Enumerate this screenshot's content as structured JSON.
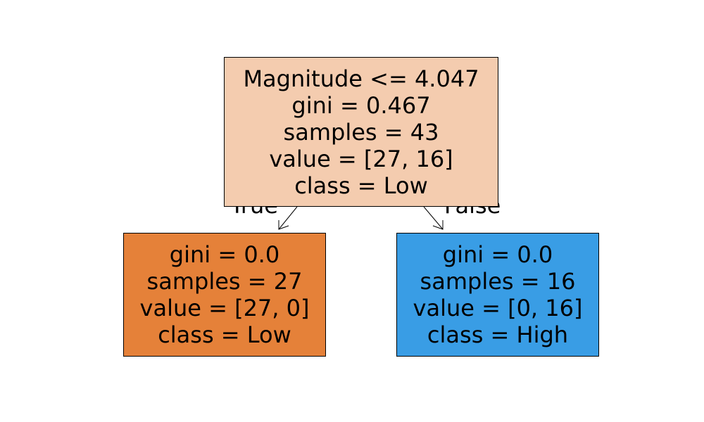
{
  "tree": {
    "root": {
      "condition": "Magnitude <= 4.047",
      "gini": "gini = 0.467",
      "samples": "samples = 43",
      "value": "value = [27, 16]",
      "class": "class = Low",
      "color": "#f4ccaf"
    },
    "left": {
      "gini": "gini = 0.0",
      "samples": "samples = 27",
      "value": "value = [27, 0]",
      "class": "class = Low",
      "color": "#e58139"
    },
    "right": {
      "gini": "gini = 0.0",
      "samples": "samples = 16",
      "value": "value = [0, 16]",
      "class": "class = High",
      "color": "#399de5"
    },
    "edge_labels": {
      "true": "True",
      "false": "False"
    }
  }
}
